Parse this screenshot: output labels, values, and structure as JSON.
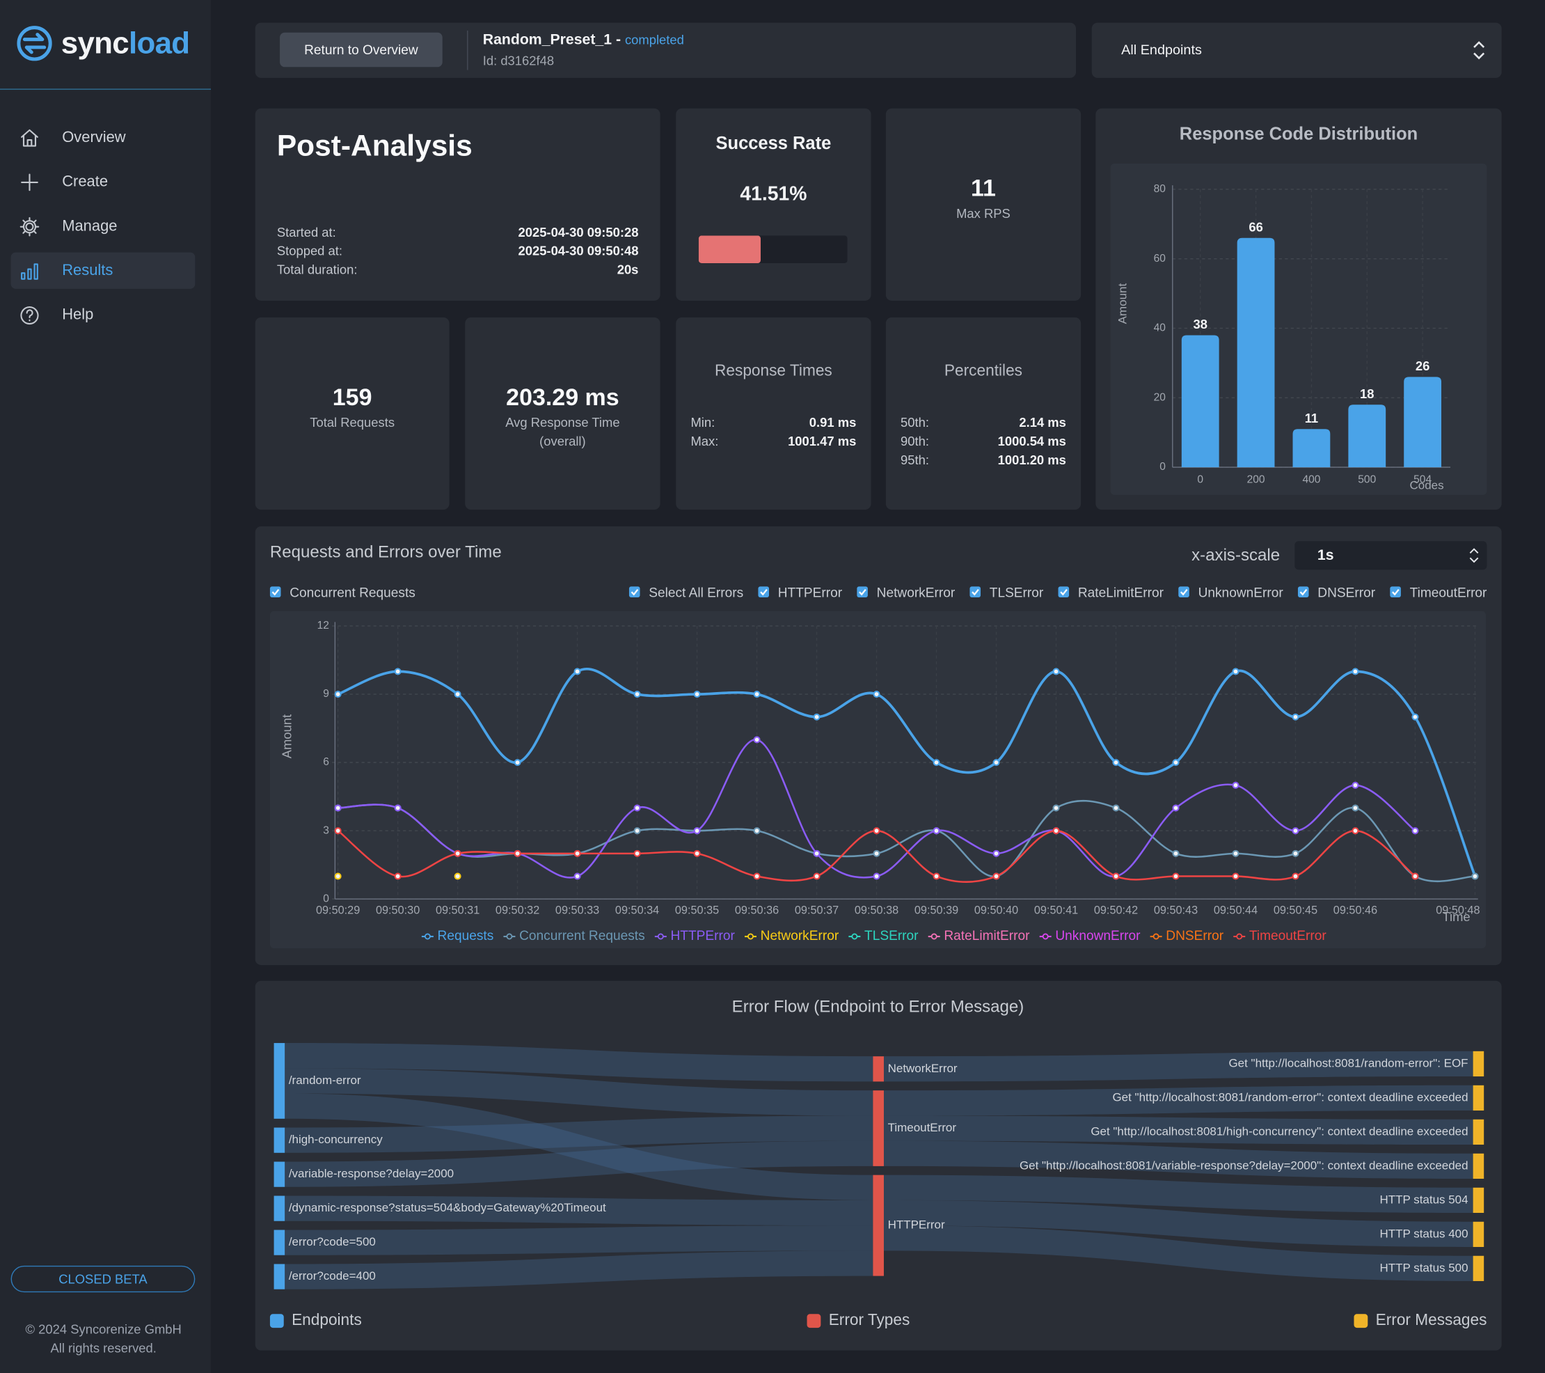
{
  "sidebar": {
    "brand_prefix": "sync",
    "brand_suffix": "load",
    "nav": [
      "Overview",
      "Create",
      "Manage",
      "Results",
      "Help"
    ],
    "active_index": 3,
    "badge": "CLOSED BETA",
    "copyright": "© 2024 Syncorenize GmbH",
    "rights": "All rights reserved."
  },
  "header": {
    "button": "Return to Overview",
    "preset": "Random_Preset_1 -",
    "status": "completed",
    "id": "Id: d3162f48",
    "endpoint_select": "All Endpoints"
  },
  "summary": {
    "title": "Post-Analysis",
    "rows": [
      {
        "label": "Started at:",
        "value": "2025-04-30 09:50:28"
      },
      {
        "label": "Stopped at:",
        "value": "2025-04-30 09:50:48"
      },
      {
        "label": "Total duration:",
        "value": "20s"
      }
    ]
  },
  "success_rate": {
    "title": "Success Rate",
    "value": 41.51,
    "label": "41.51%"
  },
  "max_rps": {
    "value": 11,
    "label": "Max RPS"
  },
  "total_requests": {
    "value": 159,
    "label": "Total Requests"
  },
  "avg_response": {
    "value": "203.29 ms",
    "label": "Avg Response Time (overall)"
  },
  "response_times": {
    "title": "Response Times",
    "rows": [
      {
        "label": "Min:",
        "value": "0.91 ms"
      },
      {
        "label": "Max:",
        "value": "1001.47 ms"
      }
    ]
  },
  "percentiles": {
    "title": "Percentiles",
    "rows": [
      {
        "label": "50th:",
        "value": "2.14 ms"
      },
      {
        "label": "90th:",
        "value": "1000.54 ms"
      },
      {
        "label": "95th:",
        "value": "1001.20 ms"
      }
    ]
  },
  "chart_data": [
    {
      "type": "bar",
      "title": "Response Code Distribution",
      "ylabel": "Amount",
      "xlabel": "Codes",
      "categories": [
        "0",
        "200",
        "400",
        "500",
        "504"
      ],
      "values": [
        38,
        66,
        11,
        18,
        26
      ],
      "color": "#4aa3e8",
      "ylim": [
        0,
        80
      ],
      "yticks": [
        0,
        20,
        40,
        60,
        80
      ],
      "grid": true
    },
    {
      "type": "line",
      "title": "Requests and Errors over Time",
      "ylabel": "Amount",
      "xlabel": "Time",
      "categories": [
        "09:50:29",
        "09:50:30",
        "09:50:31",
        "09:50:32",
        "09:50:33",
        "09:50:34",
        "09:50:35",
        "09:50:36",
        "09:50:37",
        "09:50:38",
        "09:50:39",
        "09:50:40",
        "09:50:41",
        "09:50:42",
        "09:50:43",
        "09:50:44",
        "09:50:45",
        "09:50:46",
        null,
        "09:50:48"
      ],
      "series": [
        {
          "name": "Requests",
          "color": "#4aa3e8",
          "values": [
            9,
            10,
            9,
            6,
            10,
            9,
            9,
            9,
            8,
            9,
            6,
            6,
            10,
            6,
            6,
            10,
            8,
            10,
            8,
            1
          ]
        },
        {
          "name": "Concurrent Requests",
          "color": "#6b97b3",
          "values": [
            4,
            4,
            2,
            2,
            2,
            3,
            3,
            3,
            2,
            2,
            3,
            1,
            4,
            4,
            2,
            2,
            2,
            4,
            1,
            1
          ]
        },
        {
          "name": "HTTPError",
          "color": "#8b5cf6",
          "values": [
            4,
            4,
            2,
            2,
            1,
            4,
            3,
            7,
            2,
            1,
            3,
            2,
            3,
            1,
            4,
            5,
            3,
            5,
            3,
            null
          ]
        },
        {
          "name": "NetworkError",
          "color": "#facc15",
          "values": [
            1,
            null,
            1,
            null,
            null,
            null,
            null,
            null,
            null,
            null,
            null,
            null,
            null,
            null,
            null,
            null,
            null,
            null,
            null,
            null
          ]
        },
        {
          "name": "TLSError",
          "color": "#2dd4bf",
          "values": [
            null,
            null,
            null,
            null,
            null,
            null,
            null,
            null,
            null,
            null,
            null,
            null,
            null,
            null,
            null,
            null,
            null,
            null,
            null,
            null
          ]
        },
        {
          "name": "RateLimitError",
          "color": "#f472b6",
          "values": [
            null,
            null,
            null,
            null,
            null,
            null,
            null,
            null,
            null,
            null,
            null,
            null,
            null,
            null,
            null,
            null,
            null,
            null,
            null,
            null
          ]
        },
        {
          "name": "UnknownError",
          "color": "#d946ef",
          "values": [
            null,
            null,
            null,
            null,
            null,
            null,
            null,
            null,
            null,
            null,
            null,
            null,
            null,
            null,
            null,
            null,
            null,
            null,
            null,
            null
          ]
        },
        {
          "name": "DNSError",
          "color": "#f97316",
          "values": [
            null,
            null,
            null,
            null,
            null,
            null,
            null,
            null,
            null,
            null,
            null,
            null,
            null,
            null,
            null,
            null,
            null,
            null,
            null,
            null
          ]
        },
        {
          "name": "TimeoutError",
          "color": "#ef4444",
          "values": [
            3,
            1,
            2,
            2,
            2,
            2,
            2,
            1,
            1,
            3,
            1,
            1,
            3,
            1,
            1,
            1,
            1,
            3,
            1,
            null
          ]
        }
      ],
      "ylim": [
        0,
        12
      ],
      "yticks": [
        0,
        3,
        6,
        9,
        12
      ],
      "grid": true,
      "smooth": true,
      "legend": "bottom"
    }
  ],
  "line_controls": {
    "scale_label": "x-axis-scale",
    "scale_value": "1s",
    "left_toggle": "Concurrent Requests",
    "toggles": [
      "Select All Errors",
      "HTTPError",
      "NetworkError",
      "TLSError",
      "RateLimitError",
      "UnknownError",
      "DNSError",
      "TimeoutError"
    ]
  },
  "sankey": {
    "title": "Error Flow (Endpoint to Error Message)",
    "legend": [
      {
        "name": "Endpoints",
        "color": "#4aa3e8"
      },
      {
        "name": "Error Types",
        "color": "#e0554a"
      },
      {
        "name": "Error Messages",
        "color": "#f0b429"
      }
    ],
    "nodes": [
      {
        "name": "/random-error",
        "column": 0
      },
      {
        "name": "/high-concurrency",
        "column": 0
      },
      {
        "name": "/variable-response?delay=2000",
        "column": 0
      },
      {
        "name": "/dynamic-response?status=504&body=Gateway%20Timeout",
        "column": 0
      },
      {
        "name": "/error?code=500",
        "column": 0
      },
      {
        "name": "/error?code=400",
        "column": 0
      },
      {
        "name": "NetworkError",
        "column": 1
      },
      {
        "name": "TimeoutError",
        "column": 1
      },
      {
        "name": "HTTPError",
        "column": 1
      },
      {
        "name": "Get \"http://localhost:8081/random-error\": EOF",
        "column": 2
      },
      {
        "name": "Get \"http://localhost:8081/random-error\": context deadline exceeded",
        "column": 2
      },
      {
        "name": "Get \"http://localhost:8081/high-concurrency\": context deadline exceeded",
        "column": 2
      },
      {
        "name": "Get \"http://localhost:8081/variable-response?delay=2000\": context deadline exceeded",
        "column": 2
      },
      {
        "name": "HTTP status 504",
        "column": 2
      },
      {
        "name": "HTTP status 400",
        "column": 2
      },
      {
        "name": "HTTP status 500",
        "column": 2
      }
    ],
    "links": [
      {
        "source": 0,
        "target": 6,
        "value": 1
      },
      {
        "source": 0,
        "target": 7,
        "value": 1
      },
      {
        "source": 0,
        "target": 8,
        "value": 1
      },
      {
        "source": 1,
        "target": 7,
        "value": 1
      },
      {
        "source": 2,
        "target": 7,
        "value": 1
      },
      {
        "source": 3,
        "target": 8,
        "value": 1
      },
      {
        "source": 4,
        "target": 8,
        "value": 1
      },
      {
        "source": 5,
        "target": 8,
        "value": 1
      },
      {
        "source": 6,
        "target": 9,
        "value": 1
      },
      {
        "source": 7,
        "target": 10,
        "value": 1
      },
      {
        "source": 7,
        "target": 11,
        "value": 1
      },
      {
        "source": 7,
        "target": 12,
        "value": 1
      },
      {
        "source": 8,
        "target": 13,
        "value": 1
      },
      {
        "source": 8,
        "target": 14,
        "value": 1
      },
      {
        "source": 8,
        "target": 15,
        "value": 1
      }
    ]
  }
}
